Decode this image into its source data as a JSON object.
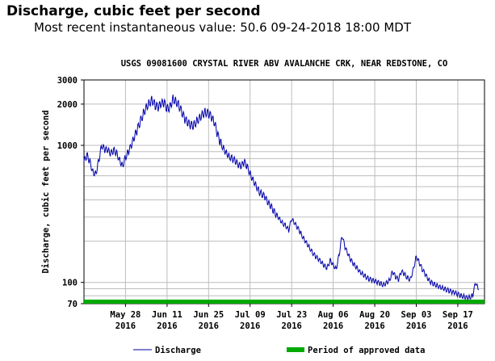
{
  "header": {
    "title": "Discharge, cubic feet per second",
    "subtitle": "Most recent instantaneous value: 50.6 09-24-2018   18:00 MDT"
  },
  "chart_data": {
    "type": "line",
    "title": "USGS 09081600 CRYSTAL RIVER ABV AVALANCHE CRK, NEAR REDSTONE, CO",
    "ylabel": "Discharge, cubic feet per second",
    "xlabel": "",
    "y_scale": "log",
    "ylim": [
      70,
      3000
    ],
    "xlim": [
      "2016-05-14",
      "2016-09-26"
    ],
    "y_ticks": [
      {
        "value": 70,
        "label": "70"
      },
      {
        "value": 100,
        "label": "100"
      },
      {
        "value": 1000,
        "label": "1000"
      },
      {
        "value": 2000,
        "label": "2000"
      },
      {
        "value": 3000,
        "label": "3000"
      }
    ],
    "x_ticks": [
      {
        "date": "2016-05-28",
        "label": "May 28",
        "year": "2016"
      },
      {
        "date": "2016-06-11",
        "label": "Jun 11",
        "year": "2016"
      },
      {
        "date": "2016-06-25",
        "label": "Jun 25",
        "year": "2016"
      },
      {
        "date": "2016-07-09",
        "label": "Jul 09",
        "year": "2016"
      },
      {
        "date": "2016-07-23",
        "label": "Jul 23",
        "year": "2016"
      },
      {
        "date": "2016-08-06",
        "label": "Aug 06",
        "year": "2016"
      },
      {
        "date": "2016-08-20",
        "label": "Aug 20",
        "year": "2016"
      },
      {
        "date": "2016-09-03",
        "label": "Sep 03",
        "year": "2016"
      },
      {
        "date": "2016-09-17",
        "label": "Sep 17",
        "year": "2016"
      }
    ],
    "grid": true,
    "legend_position": "bottom",
    "series": [
      {
        "name": "Discharge",
        "color": "#0000aa",
        "points": [
          [
            "2016-05-14",
            760
          ],
          [
            "2016-05-15",
            850
          ],
          [
            "2016-05-16",
            760
          ],
          [
            "2016-05-17",
            640
          ],
          [
            "2016-05-18",
            620
          ],
          [
            "2016-05-19",
            780
          ],
          [
            "2016-05-20",
            1000
          ],
          [
            "2016-05-21",
            930
          ],
          [
            "2016-05-22",
            920
          ],
          [
            "2016-05-23",
            870
          ],
          [
            "2016-05-24",
            920
          ],
          [
            "2016-05-25",
            880
          ],
          [
            "2016-05-26",
            780
          ],
          [
            "2016-05-27",
            710
          ],
          [
            "2016-05-28",
            820
          ],
          [
            "2016-05-29",
            900
          ],
          [
            "2016-05-30",
            1000
          ],
          [
            "2016-05-31",
            1150
          ],
          [
            "2016-06-01",
            1300
          ],
          [
            "2016-06-02",
            1500
          ],
          [
            "2016-06-03",
            1700
          ],
          [
            "2016-06-04",
            1900
          ],
          [
            "2016-06-05",
            2050
          ],
          [
            "2016-06-06",
            2150
          ],
          [
            "2016-06-07",
            1950
          ],
          [
            "2016-06-08",
            1900
          ],
          [
            "2016-06-09",
            2000
          ],
          [
            "2016-06-10",
            2050
          ],
          [
            "2016-06-11",
            1850
          ],
          [
            "2016-06-12",
            1900
          ],
          [
            "2016-06-13",
            2200
          ],
          [
            "2016-06-14",
            2100
          ],
          [
            "2016-06-15",
            1950
          ],
          [
            "2016-06-16",
            1750
          ],
          [
            "2016-06-17",
            1550
          ],
          [
            "2016-06-18",
            1450
          ],
          [
            "2016-06-19",
            1400
          ],
          [
            "2016-06-20",
            1400
          ],
          [
            "2016-06-21",
            1500
          ],
          [
            "2016-06-22",
            1600
          ],
          [
            "2016-06-23",
            1700
          ],
          [
            "2016-06-24",
            1750
          ],
          [
            "2016-06-25",
            1700
          ],
          [
            "2016-06-26",
            1600
          ],
          [
            "2016-06-27",
            1450
          ],
          [
            "2016-06-28",
            1200
          ],
          [
            "2016-06-29",
            1050
          ],
          [
            "2016-06-30",
            950
          ],
          [
            "2016-07-01",
            880
          ],
          [
            "2016-07-02",
            830
          ],
          [
            "2016-07-03",
            800
          ],
          [
            "2016-07-04",
            770
          ],
          [
            "2016-07-05",
            720
          ],
          [
            "2016-07-06",
            700
          ],
          [
            "2016-07-07",
            760
          ],
          [
            "2016-07-08",
            700
          ],
          [
            "2016-07-09",
            620
          ],
          [
            "2016-07-10",
            560
          ],
          [
            "2016-07-11",
            510
          ],
          [
            "2016-07-12",
            460
          ],
          [
            "2016-07-13",
            440
          ],
          [
            "2016-07-14",
            420
          ],
          [
            "2016-07-15",
            380
          ],
          [
            "2016-07-16",
            360
          ],
          [
            "2016-07-17",
            330
          ],
          [
            "2016-07-18",
            310
          ],
          [
            "2016-07-19",
            290
          ],
          [
            "2016-07-20",
            270
          ],
          [
            "2016-07-21",
            260
          ],
          [
            "2016-07-22",
            240
          ],
          [
            "2016-07-23",
            290
          ],
          [
            "2016-07-24",
            270
          ],
          [
            "2016-07-25",
            250
          ],
          [
            "2016-07-26",
            230
          ],
          [
            "2016-07-27",
            210
          ],
          [
            "2016-07-28",
            195
          ],
          [
            "2016-07-29",
            180
          ],
          [
            "2016-07-30",
            165
          ],
          [
            "2016-07-31",
            155
          ],
          [
            "2016-08-01",
            148
          ],
          [
            "2016-08-02",
            140
          ],
          [
            "2016-08-03",
            132
          ],
          [
            "2016-08-04",
            128
          ],
          [
            "2016-08-05",
            145
          ],
          [
            "2016-08-06",
            135
          ],
          [
            "2016-08-07",
            125
          ],
          [
            "2016-08-08",
            160
          ],
          [
            "2016-08-09",
            220
          ],
          [
            "2016-08-10",
            180
          ],
          [
            "2016-08-11",
            160
          ],
          [
            "2016-08-12",
            145
          ],
          [
            "2016-08-13",
            135
          ],
          [
            "2016-08-14",
            128
          ],
          [
            "2016-08-15",
            120
          ],
          [
            "2016-08-16",
            115
          ],
          [
            "2016-08-17",
            110
          ],
          [
            "2016-08-18",
            106
          ],
          [
            "2016-08-19",
            104
          ],
          [
            "2016-08-20",
            102
          ],
          [
            "2016-08-21",
            100
          ],
          [
            "2016-08-22",
            98
          ],
          [
            "2016-08-23",
            96
          ],
          [
            "2016-08-24",
            100
          ],
          [
            "2016-08-25",
            104
          ],
          [
            "2016-08-26",
            120
          ],
          [
            "2016-08-27",
            110
          ],
          [
            "2016-08-28",
            105
          ],
          [
            "2016-08-29",
            120
          ],
          [
            "2016-08-30",
            115
          ],
          [
            "2016-08-31",
            108
          ],
          [
            "2016-09-01",
            105
          ],
          [
            "2016-09-02",
            125
          ],
          [
            "2016-09-03",
            155
          ],
          [
            "2016-09-04",
            140
          ],
          [
            "2016-09-05",
            125
          ],
          [
            "2016-09-06",
            115
          ],
          [
            "2016-09-07",
            105
          ],
          [
            "2016-09-08",
            100
          ],
          [
            "2016-09-09",
            97
          ],
          [
            "2016-09-10",
            95
          ],
          [
            "2016-09-11",
            93
          ],
          [
            "2016-09-12",
            91
          ],
          [
            "2016-09-13",
            89
          ],
          [
            "2016-09-14",
            87
          ],
          [
            "2016-09-15",
            85
          ],
          [
            "2016-09-16",
            84
          ],
          [
            "2016-09-17",
            82
          ],
          [
            "2016-09-18",
            80
          ],
          [
            "2016-09-19",
            79
          ],
          [
            "2016-09-20",
            78
          ],
          [
            "2016-09-21",
            78
          ],
          [
            "2016-09-22",
            80
          ],
          [
            "2016-09-23",
            100
          ],
          [
            "2016-09-24",
            88
          ]
        ]
      }
    ],
    "approved_period": {
      "name": "Period of approved data",
      "color": "#00aa00",
      "start": "2016-05-14",
      "end": "2016-09-26"
    },
    "legend": [
      {
        "name": "Discharge",
        "color": "#0000aa"
      },
      {
        "name": "Period of approved data",
        "color": "#00aa00"
      }
    ]
  }
}
